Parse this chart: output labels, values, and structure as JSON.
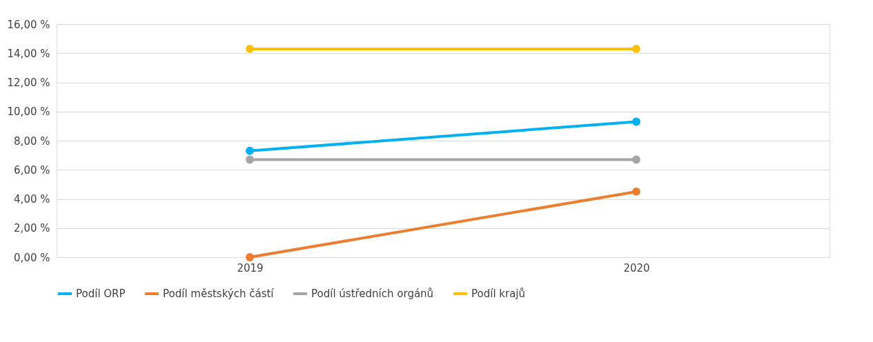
{
  "chart_data": {
    "type": "line",
    "categories": [
      "2019",
      "2020"
    ],
    "series": [
      {
        "name": "Podíl ORP",
        "color": "#00b0f0",
        "values": [
          7.3,
          9.3
        ]
      },
      {
        "name": "Podíl městských částí",
        "color": "#ed7d31",
        "values": [
          0,
          4.5
        ]
      },
      {
        "name": "Podíl ústředních orgánů",
        "color": "#a5a5a5",
        "values": [
          6.7,
          6.7
        ]
      },
      {
        "name": "Podíl krajů",
        "color": "#ffc000",
        "values": [
          14.3,
          14.3
        ]
      }
    ],
    "ylim": [
      0,
      16
    ],
    "yticks": [
      {
        "value": 0,
        "label": "0,00 %"
      },
      {
        "value": 2,
        "label": "2,00 %"
      },
      {
        "value": 4,
        "label": "4,00 %"
      },
      {
        "value": 6,
        "label": "6,00 %"
      },
      {
        "value": 8,
        "label": "8,00 %"
      },
      {
        "value": 10,
        "label": "10,00 %"
      },
      {
        "value": 12,
        "label": "12,00 %"
      },
      {
        "value": 14,
        "label": "14,00 %"
      },
      {
        "value": 16,
        "label": "16,00 %"
      }
    ],
    "grid": "y",
    "legend": "bottom",
    "marker": "circle",
    "line_style": "solid"
  }
}
